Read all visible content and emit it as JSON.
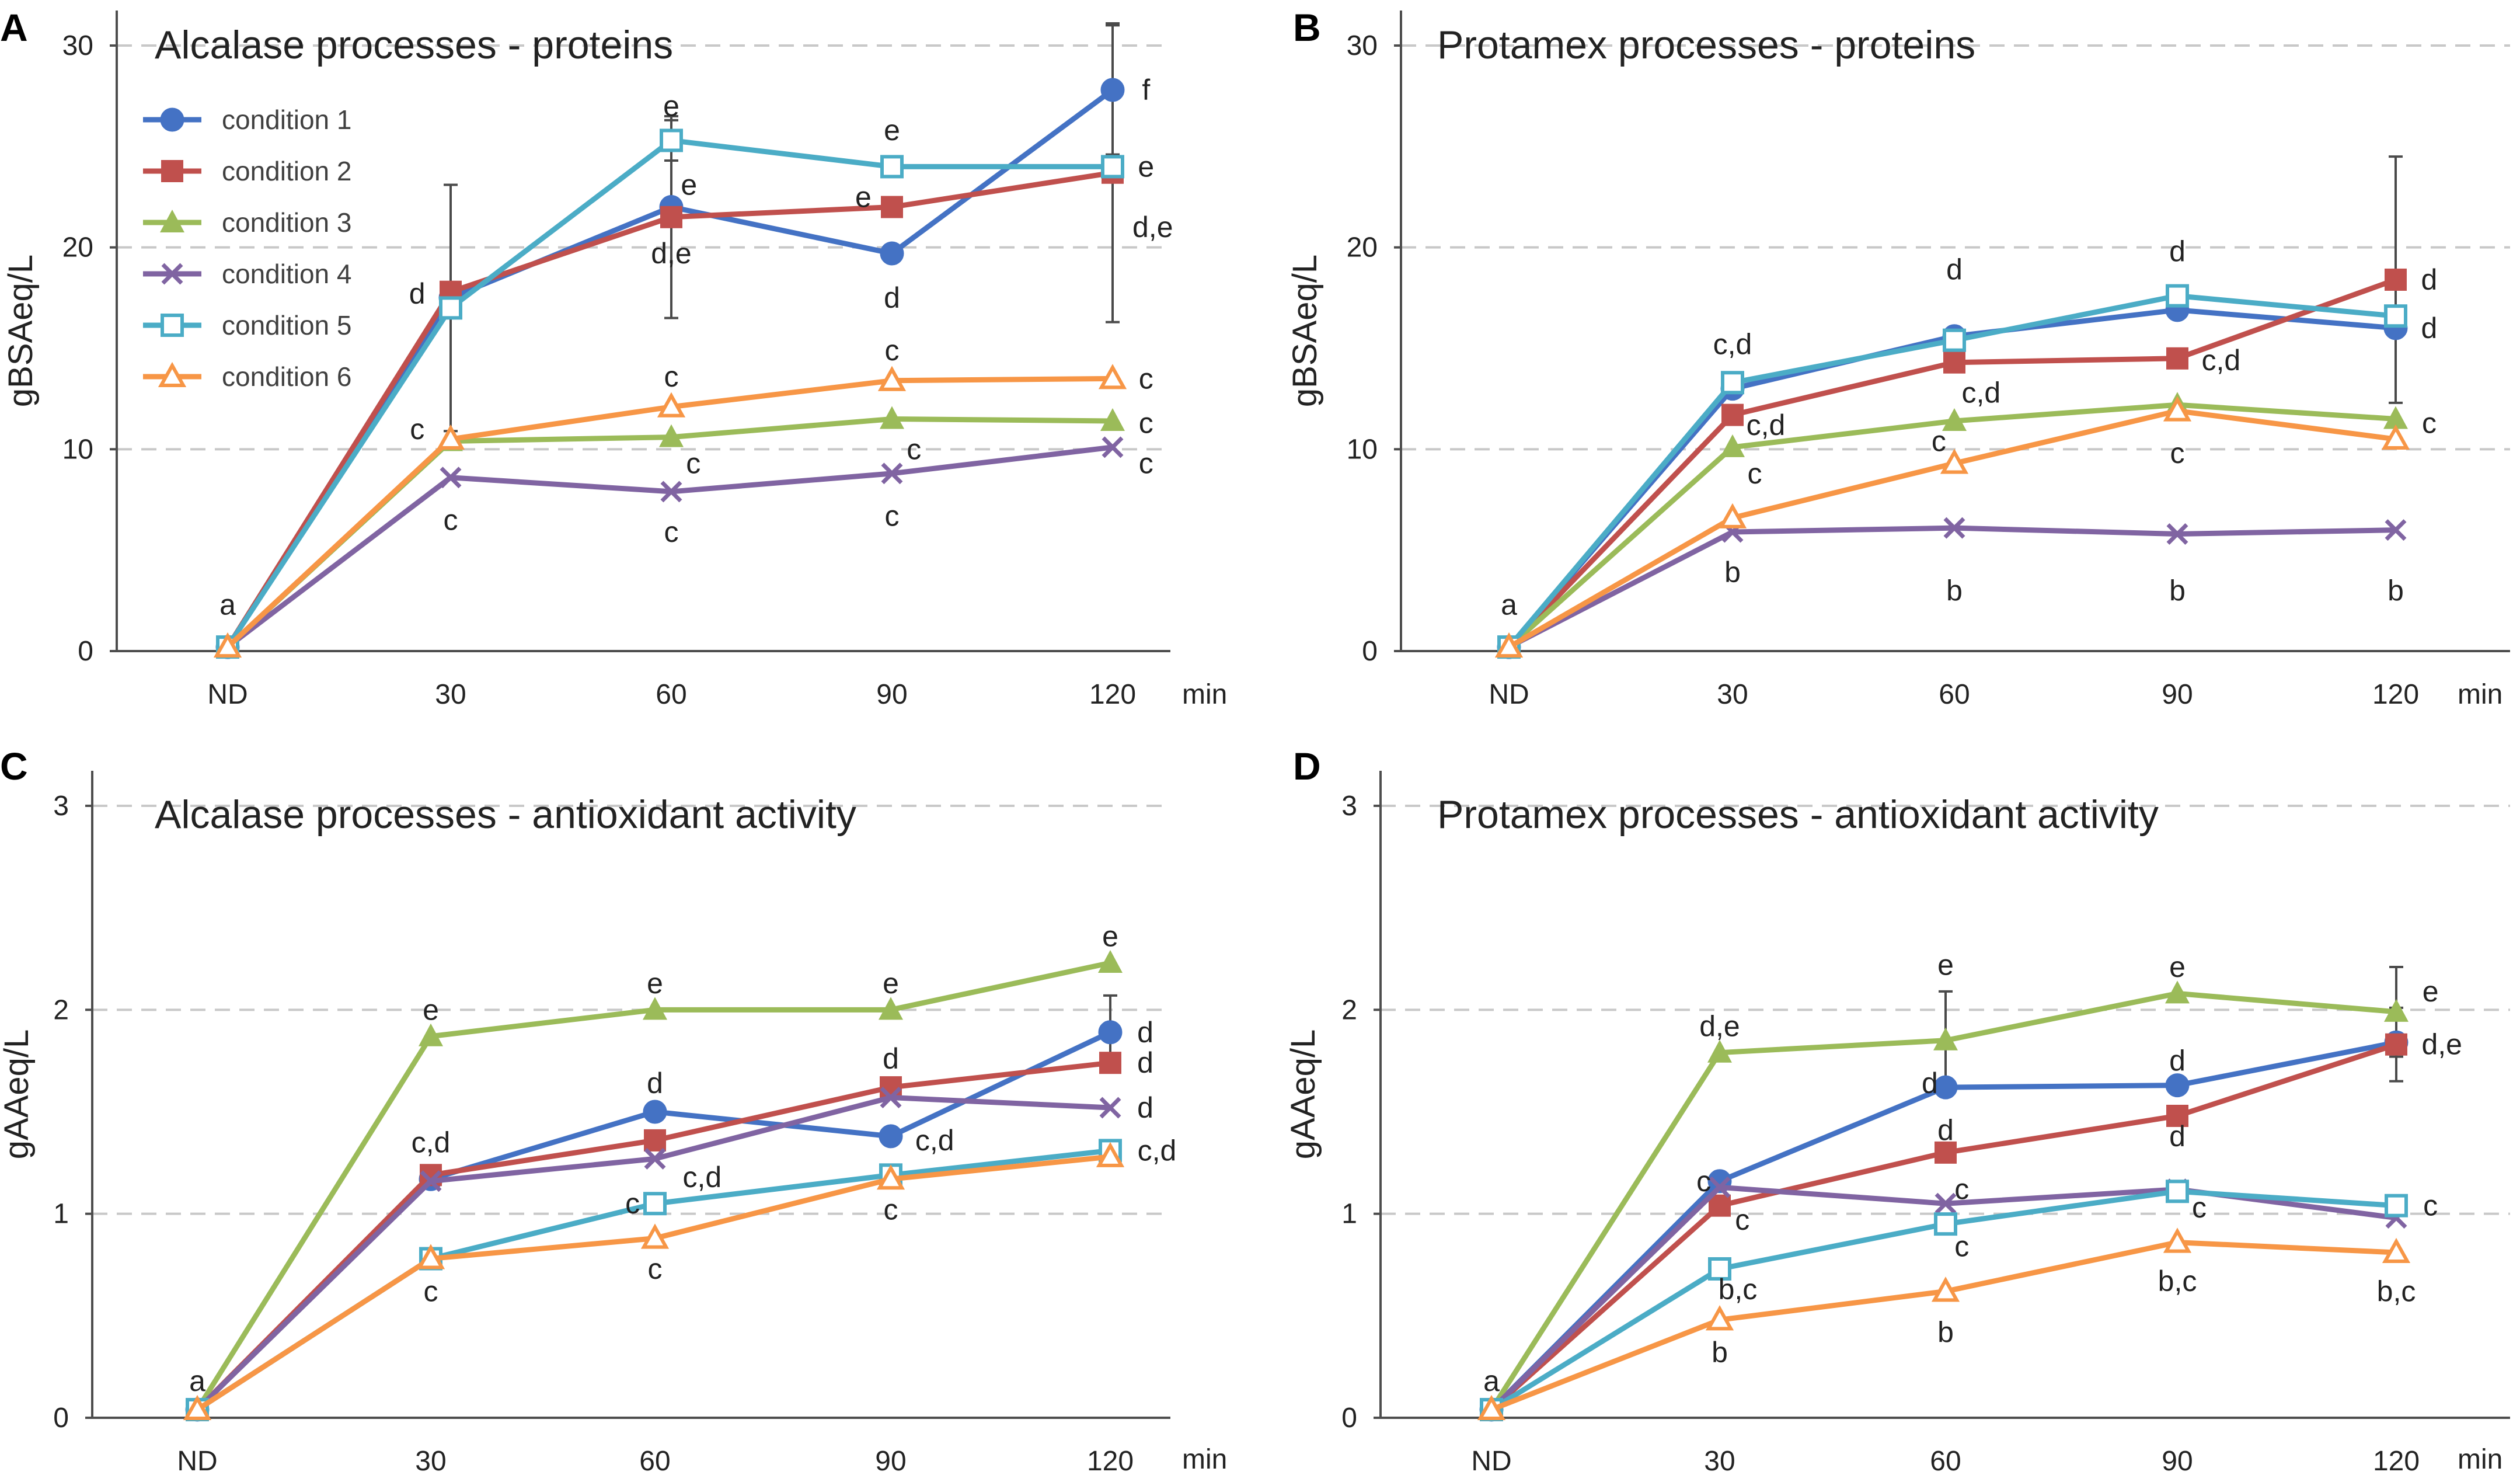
{
  "series_styles": [
    {
      "name": "condition 1",
      "color": "#4472C4",
      "marker": "circle"
    },
    {
      "name": "condition 2",
      "color": "#C0504D",
      "marker": "square"
    },
    {
      "name": "condition 3",
      "color": "#9BBB59",
      "marker": "triangle"
    },
    {
      "name": "condition 4",
      "color": "#8064A2",
      "marker": "x"
    },
    {
      "name": "condition 5",
      "color": "#4BACC6",
      "marker": "open-square"
    },
    {
      "name": "condition 6",
      "color": "#F79646",
      "marker": "open-triangle"
    }
  ],
  "chart_data": [
    {
      "type": "line",
      "panel_label": "A",
      "title": "Alcalase processes - proteins",
      "xlabel": "min",
      "ylabel": "gBSAeq/L",
      "categories": [
        "ND",
        "30",
        "60",
        "90",
        "120"
      ],
      "ylim": [
        0,
        30
      ],
      "yticks": [
        "0",
        "10",
        "20",
        "30"
      ],
      "ytick_values": [
        0,
        10,
        20,
        30
      ],
      "grid": true,
      "legend": "top-left",
      "series": [
        {
          "name": "condition 1",
          "values": [
            0.2,
            17.5,
            22.0,
            19.7,
            27.8
          ],
          "errors": [
            0,
            0,
            0,
            0,
            3.2
          ]
        },
        {
          "name": "condition 2",
          "values": [
            0.2,
            17.8,
            21.5,
            22.0,
            23.7
          ],
          "errors": [
            0,
            0,
            5.0,
            0,
            7.4
          ]
        },
        {
          "name": "condition 3",
          "values": [
            0.2,
            10.4,
            10.6,
            11.5,
            11.4
          ],
          "errors": [
            0,
            0,
            0,
            0,
            0
          ]
        },
        {
          "name": "condition 4",
          "values": [
            0.2,
            8.6,
            7.9,
            8.8,
            10.1
          ],
          "errors": [
            0,
            0,
            0,
            0,
            0
          ]
        },
        {
          "name": "condition 5",
          "values": [
            0.2,
            17.0,
            25.3,
            24.0,
            24.0
          ],
          "errors": [
            0,
            6.1,
            1.0,
            0,
            0
          ]
        },
        {
          "name": "condition 6",
          "values": [
            0.2,
            10.5,
            12.1,
            13.4,
            13.5
          ],
          "errors": [
            0,
            0,
            0,
            0,
            0
          ]
        }
      ],
      "annotations": [
        {
          "text": "a",
          "x": 0,
          "y": 2.3
        },
        {
          "text": "d",
          "x": 0.85,
          "y": 17.7
        },
        {
          "text": "c",
          "x": 0.85,
          "y": 11.0
        },
        {
          "text": "c",
          "x": 1.0,
          "y": 6.5
        },
        {
          "text": "e",
          "x": 2.0,
          "y": 27.0
        },
        {
          "text": "e",
          "x": 2.08,
          "y": 23.1
        },
        {
          "text": "d,e",
          "x": 2.0,
          "y": 19.7
        },
        {
          "text": "c",
          "x": 2.0,
          "y": 13.6
        },
        {
          "text": "c",
          "x": 2.1,
          "y": 9.3
        },
        {
          "text": "c",
          "x": 2.0,
          "y": 5.9
        },
        {
          "text": "e",
          "x": 3.0,
          "y": 25.8
        },
        {
          "text": "e",
          "x": 2.87,
          "y": 22.5
        },
        {
          "text": "d",
          "x": 3.0,
          "y": 17.5
        },
        {
          "text": "c",
          "x": 3.0,
          "y": 14.9
        },
        {
          "text": "c",
          "x": 3.1,
          "y": 10.0
        },
        {
          "text": "c",
          "x": 3.0,
          "y": 6.7
        },
        {
          "text": "f",
          "x": 4.15,
          "y": 27.8
        },
        {
          "text": "e",
          "x": 4.15,
          "y": 24.0
        },
        {
          "text": "d,e",
          "x": 4.18,
          "y": 21.0
        },
        {
          "text": "c",
          "x": 4.15,
          "y": 13.5
        },
        {
          "text": "c",
          "x": 4.15,
          "y": 11.3
        },
        {
          "text": "c",
          "x": 4.15,
          "y": 9.3
        }
      ]
    },
    {
      "type": "line",
      "panel_label": "B",
      "title": "Protamex processes - proteins",
      "xlabel": "min",
      "ylabel": "gBSAeq/L",
      "categories": [
        "ND",
        "30",
        "60",
        "90",
        "120"
      ],
      "ylim": [
        0,
        30
      ],
      "yticks": [
        "0",
        "10",
        "20",
        "30"
      ],
      "ytick_values": [
        0,
        10,
        20,
        30
      ],
      "grid": true,
      "legend": "none",
      "series": [
        {
          "name": "condition 1",
          "values": [
            0.2,
            13.0,
            15.6,
            16.9,
            16.0
          ],
          "errors": [
            0,
            0,
            0,
            0,
            0
          ]
        },
        {
          "name": "condition 2",
          "values": [
            0.2,
            11.7,
            14.3,
            14.5,
            18.4
          ],
          "errors": [
            0,
            0,
            0,
            0,
            6.1
          ]
        },
        {
          "name": "condition 3",
          "values": [
            0.2,
            10.1,
            11.4,
            12.2,
            11.5
          ],
          "errors": [
            0,
            0,
            0,
            0,
            0
          ]
        },
        {
          "name": "condition 4",
          "values": [
            0.2,
            5.9,
            6.1,
            5.8,
            6.0
          ],
          "errors": [
            0,
            0,
            0,
            0,
            0
          ]
        },
        {
          "name": "condition 5",
          "values": [
            0.2,
            13.3,
            15.4,
            17.6,
            16.6
          ],
          "errors": [
            0,
            0,
            0,
            0,
            0
          ]
        },
        {
          "name": "condition 6",
          "values": [
            0.2,
            6.6,
            9.3,
            11.9,
            10.5
          ],
          "errors": [
            0,
            0,
            0,
            0,
            0
          ]
        }
      ],
      "annotations": [
        {
          "text": "a",
          "x": 0,
          "y": 2.3
        },
        {
          "text": "c,d",
          "x": 1.0,
          "y": 15.2
        },
        {
          "text": "c,d",
          "x": 1.15,
          "y": 11.2
        },
        {
          "text": "c",
          "x": 1.1,
          "y": 8.8
        },
        {
          "text": "b",
          "x": 1.0,
          "y": 3.9
        },
        {
          "text": "d",
          "x": 2.0,
          "y": 18.9
        },
        {
          "text": "c,d",
          "x": 2.12,
          "y": 12.8
        },
        {
          "text": "c",
          "x": 1.93,
          "y": 10.4
        },
        {
          "text": "b",
          "x": 2.0,
          "y": 3.0
        },
        {
          "text": "d",
          "x": 3.0,
          "y": 19.8
        },
        {
          "text": "c,d",
          "x": 3.2,
          "y": 14.4
        },
        {
          "text": "c",
          "x": 3.0,
          "y": 9.8
        },
        {
          "text": "b",
          "x": 3.0,
          "y": 3.0
        },
        {
          "text": "d",
          "x": 4.15,
          "y": 18.4
        },
        {
          "text": "d",
          "x": 4.15,
          "y": 16.0
        },
        {
          "text": "c",
          "x": 4.15,
          "y": 11.3
        },
        {
          "text": "b",
          "x": 4.0,
          "y": 3.0
        }
      ]
    },
    {
      "type": "line",
      "panel_label": "C",
      "title": "Alcalase processes - antioxidant activity",
      "xlabel": "min",
      "ylabel": "gAAeq/L",
      "categories": [
        "ND",
        "30",
        "60",
        "90",
        "120"
      ],
      "ylim": [
        0,
        3
      ],
      "yticks": [
        "0",
        "1",
        "2",
        "3"
      ],
      "ytick_values": [
        0,
        1,
        2,
        3
      ],
      "grid": true,
      "legend": "none",
      "series": [
        {
          "name": "condition 1",
          "values": [
            0.04,
            1.17,
            1.5,
            1.38,
            1.89
          ],
          "errors": [
            0,
            0,
            0,
            0,
            0.18
          ]
        },
        {
          "name": "condition 2",
          "values": [
            0.04,
            1.19,
            1.36,
            1.62,
            1.74
          ],
          "errors": [
            0,
            0,
            0,
            0,
            0
          ]
        },
        {
          "name": "condition 3",
          "values": [
            0.04,
            1.87,
            2.0,
            2.0,
            2.23
          ],
          "errors": [
            0,
            0,
            0,
            0,
            0
          ]
        },
        {
          "name": "condition 4",
          "values": [
            0.04,
            1.16,
            1.27,
            1.57,
            1.52
          ],
          "errors": [
            0,
            0,
            0,
            0,
            0
          ]
        },
        {
          "name": "condition 5",
          "values": [
            0.04,
            0.78,
            1.05,
            1.19,
            1.31
          ],
          "errors": [
            0,
            0,
            0,
            0,
            0
          ]
        },
        {
          "name": "condition 6",
          "values": [
            0.04,
            0.78,
            0.88,
            1.17,
            1.28
          ],
          "errors": [
            0,
            0,
            0,
            0,
            0
          ]
        }
      ],
      "annotations": [
        {
          "text": "a",
          "x": 0,
          "y": 0.18
        },
        {
          "text": "e",
          "x": 1.0,
          "y": 2.0
        },
        {
          "text": "c,d",
          "x": 1.0,
          "y": 1.35
        },
        {
          "text": "c",
          "x": 1.0,
          "y": 0.62
        },
        {
          "text": "e",
          "x": 2.0,
          "y": 2.13
        },
        {
          "text": "d",
          "x": 2.0,
          "y": 1.64
        },
        {
          "text": "c,d",
          "x": 2.2,
          "y": 1.18
        },
        {
          "text": "c",
          "x": 1.9,
          "y": 1.05
        },
        {
          "text": "c",
          "x": 2.0,
          "y": 0.73
        },
        {
          "text": "e",
          "x": 3.0,
          "y": 2.13
        },
        {
          "text": "d",
          "x": 3.0,
          "y": 1.76
        },
        {
          "text": "c,d",
          "x": 3.2,
          "y": 1.36
        },
        {
          "text": "c",
          "x": 3.0,
          "y": 1.02
        },
        {
          "text": "e",
          "x": 4.0,
          "y": 2.36
        },
        {
          "text": "d",
          "x": 4.15,
          "y": 1.89
        },
        {
          "text": "d",
          "x": 4.15,
          "y": 1.74
        },
        {
          "text": "d",
          "x": 4.15,
          "y": 1.52
        },
        {
          "text": "c,d",
          "x": 4.2,
          "y": 1.31
        }
      ]
    },
    {
      "type": "line",
      "panel_label": "D",
      "title": "Protamex processes - antioxidant activity",
      "xlabel": "min",
      "ylabel": "gAAeq/L",
      "categories": [
        "ND",
        "30",
        "60",
        "90",
        "120"
      ],
      "ylim": [
        0,
        3
      ],
      "yticks": [
        "0",
        "1",
        "2",
        "3"
      ],
      "ytick_values": [
        0,
        1,
        2,
        3
      ],
      "grid": true,
      "legend": "none",
      "series": [
        {
          "name": "condition 1",
          "values": [
            0.04,
            1.16,
            1.62,
            1.63,
            1.84
          ],
          "errors": [
            0,
            0,
            0,
            0,
            0
          ]
        },
        {
          "name": "condition 2",
          "values": [
            0.04,
            1.04,
            1.3,
            1.48,
            1.83
          ],
          "errors": [
            0,
            0,
            0,
            0,
            0.18
          ]
        },
        {
          "name": "condition 3",
          "values": [
            0.04,
            1.79,
            1.85,
            2.08,
            1.99
          ],
          "errors": [
            0,
            0,
            0.24,
            0,
            0.22
          ]
        },
        {
          "name": "condition 4",
          "values": [
            0.04,
            1.13,
            1.05,
            1.12,
            0.98
          ],
          "errors": [
            0,
            0,
            0,
            0,
            0
          ]
        },
        {
          "name": "condition 5",
          "values": [
            0.04,
            0.73,
            0.95,
            1.11,
            1.04
          ],
          "errors": [
            0,
            0,
            0,
            0,
            0
          ]
        },
        {
          "name": "condition 6",
          "values": [
            0.04,
            0.48,
            0.62,
            0.86,
            0.81
          ],
          "errors": [
            0,
            0,
            0,
            0,
            0
          ]
        }
      ],
      "annotations": [
        {
          "text": "a",
          "x": 0,
          "y": 0.18
        },
        {
          "text": "d,e",
          "x": 1.0,
          "y": 1.92
        },
        {
          "text": "c",
          "x": 0.93,
          "y": 1.16
        },
        {
          "text": "c",
          "x": 1.1,
          "y": 0.97
        },
        {
          "text": "b,c",
          "x": 1.08,
          "y": 0.63
        },
        {
          "text": "b",
          "x": 1.0,
          "y": 0.32
        },
        {
          "text": "e",
          "x": 2.0,
          "y": 2.22
        },
        {
          "text": "d",
          "x": 1.93,
          "y": 1.64
        },
        {
          "text": "d",
          "x": 2.0,
          "y": 1.41
        },
        {
          "text": "c",
          "x": 2.07,
          "y": 1.12
        },
        {
          "text": "c",
          "x": 2.07,
          "y": 0.84
        },
        {
          "text": "b",
          "x": 2.0,
          "y": 0.42
        },
        {
          "text": "e",
          "x": 3.0,
          "y": 2.21
        },
        {
          "text": "d",
          "x": 3.0,
          "y": 1.75
        },
        {
          "text": "d",
          "x": 3.0,
          "y": 1.38
        },
        {
          "text": "c",
          "x": 3.1,
          "y": 1.03
        },
        {
          "text": "b,c",
          "x": 3.0,
          "y": 0.67
        },
        {
          "text": "e",
          "x": 4.15,
          "y": 2.09
        },
        {
          "text": "d,e",
          "x": 4.2,
          "y": 1.83
        },
        {
          "text": "c",
          "x": 4.15,
          "y": 1.04
        },
        {
          "text": "b,c",
          "x": 4.0,
          "y": 0.62
        }
      ]
    }
  ]
}
